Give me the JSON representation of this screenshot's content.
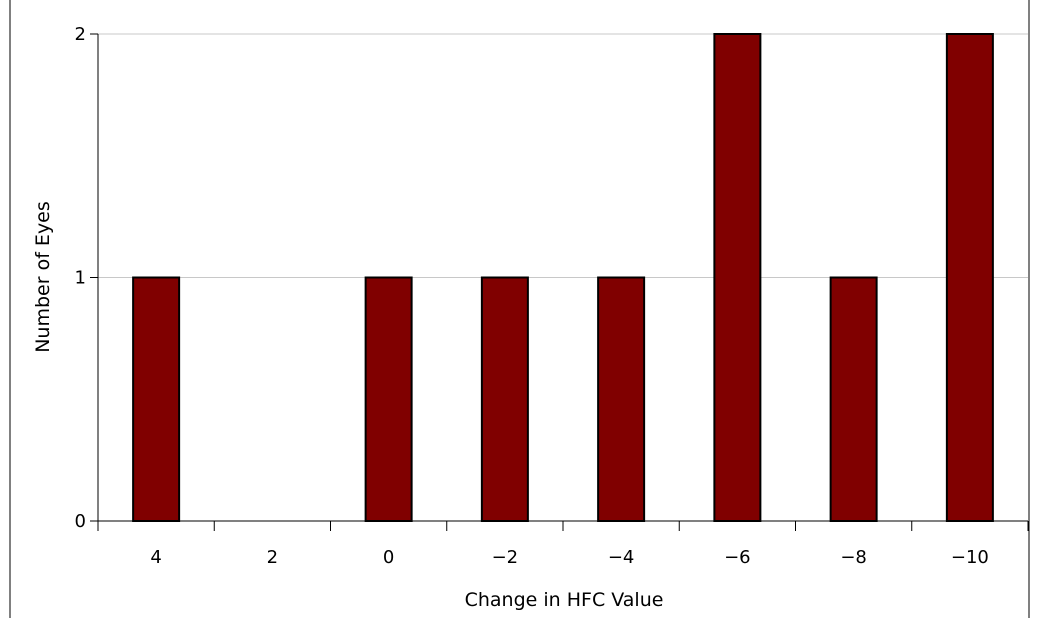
{
  "chart_data": {
    "type": "bar",
    "title": "",
    "xlabel": "Change in HFC Value",
    "ylabel": "Number of Eyes",
    "categories": [
      "4",
      "2",
      "0",
      "−2",
      "−4",
      "−6",
      "−8",
      "−10"
    ],
    "series": [
      {
        "values": [
          1,
          0,
          1,
          1,
          1,
          2,
          1,
          2
        ]
      }
    ],
    "ylim": [
      0,
      2
    ],
    "yticks": [
      "0",
      "1",
      "2"
    ],
    "grid": "horizontal",
    "colors": {
      "bar_fill": "#800000",
      "bar_stroke": "#000000",
      "grid": "#c8c8c8",
      "axis": "#000000"
    }
  }
}
